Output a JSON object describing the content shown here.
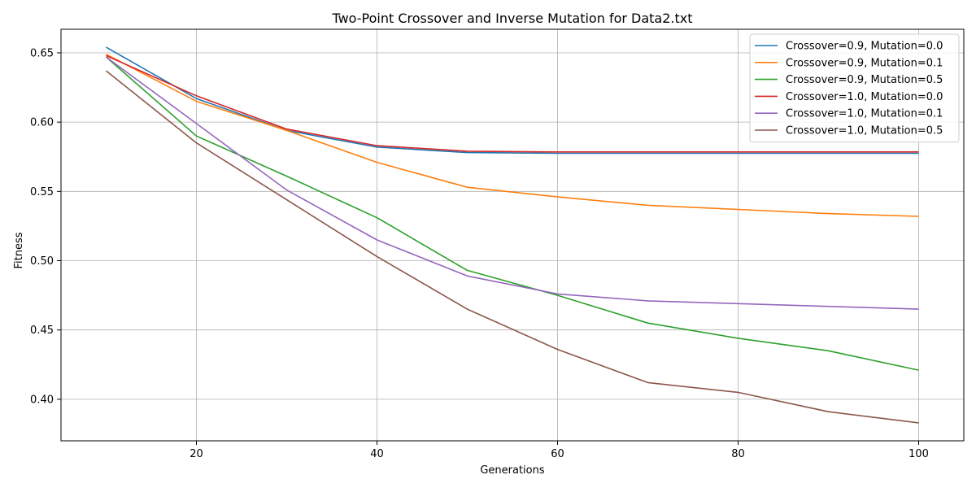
{
  "chart_data": {
    "type": "line",
    "title": "Two-Point Crossover and Inverse Mutation for Data2.txt",
    "xlabel": "Generations",
    "ylabel": "Fitness",
    "xlim": [
      5,
      105
    ],
    "ylim": [
      0.37,
      0.667
    ],
    "x_ticks": [
      20,
      40,
      60,
      80,
      100
    ],
    "y_ticks": [
      0.4,
      0.45,
      0.5,
      0.55,
      0.6,
      0.65
    ],
    "grid": true,
    "legend_position": "top-right",
    "x": [
      10,
      20,
      30,
      40,
      50,
      60,
      70,
      80,
      90,
      100
    ],
    "series": [
      {
        "name": "Crossover=0.9, Mutation=0.0",
        "color": "#1f77b4",
        "values": [
          0.654,
          0.617,
          0.594,
          0.582,
          0.578,
          0.5775,
          0.5775,
          0.5775,
          0.5775,
          0.5775
        ]
      },
      {
        "name": "Crossover=0.9, Mutation=0.1",
        "color": "#ff7f0e",
        "values": [
          0.649,
          0.615,
          0.594,
          0.571,
          0.553,
          0.546,
          0.54,
          0.537,
          0.534,
          0.532
        ]
      },
      {
        "name": "Crossover=0.9, Mutation=0.5",
        "color": "#2ca02c",
        "values": [
          0.647,
          0.59,
          0.561,
          0.531,
          0.493,
          0.475,
          0.455,
          0.444,
          0.435,
          0.421
        ]
      },
      {
        "name": "Crossover=1.0, Mutation=0.0",
        "color": "#d62728",
        "values": [
          0.648,
          0.619,
          0.595,
          0.583,
          0.579,
          0.5785,
          0.5785,
          0.5785,
          0.5785,
          0.5785
        ]
      },
      {
        "name": "Crossover=1.0, Mutation=0.1",
        "color": "#9467bd",
        "values": [
          0.647,
          0.599,
          0.551,
          0.515,
          0.489,
          0.476,
          0.471,
          0.469,
          0.467,
          0.465
        ]
      },
      {
        "name": "Crossover=1.0, Mutation=0.5",
        "color": "#8c564b",
        "values": [
          0.637,
          0.585,
          0.544,
          0.503,
          0.465,
          0.436,
          0.412,
          0.405,
          0.391,
          0.383
        ]
      }
    ]
  }
}
